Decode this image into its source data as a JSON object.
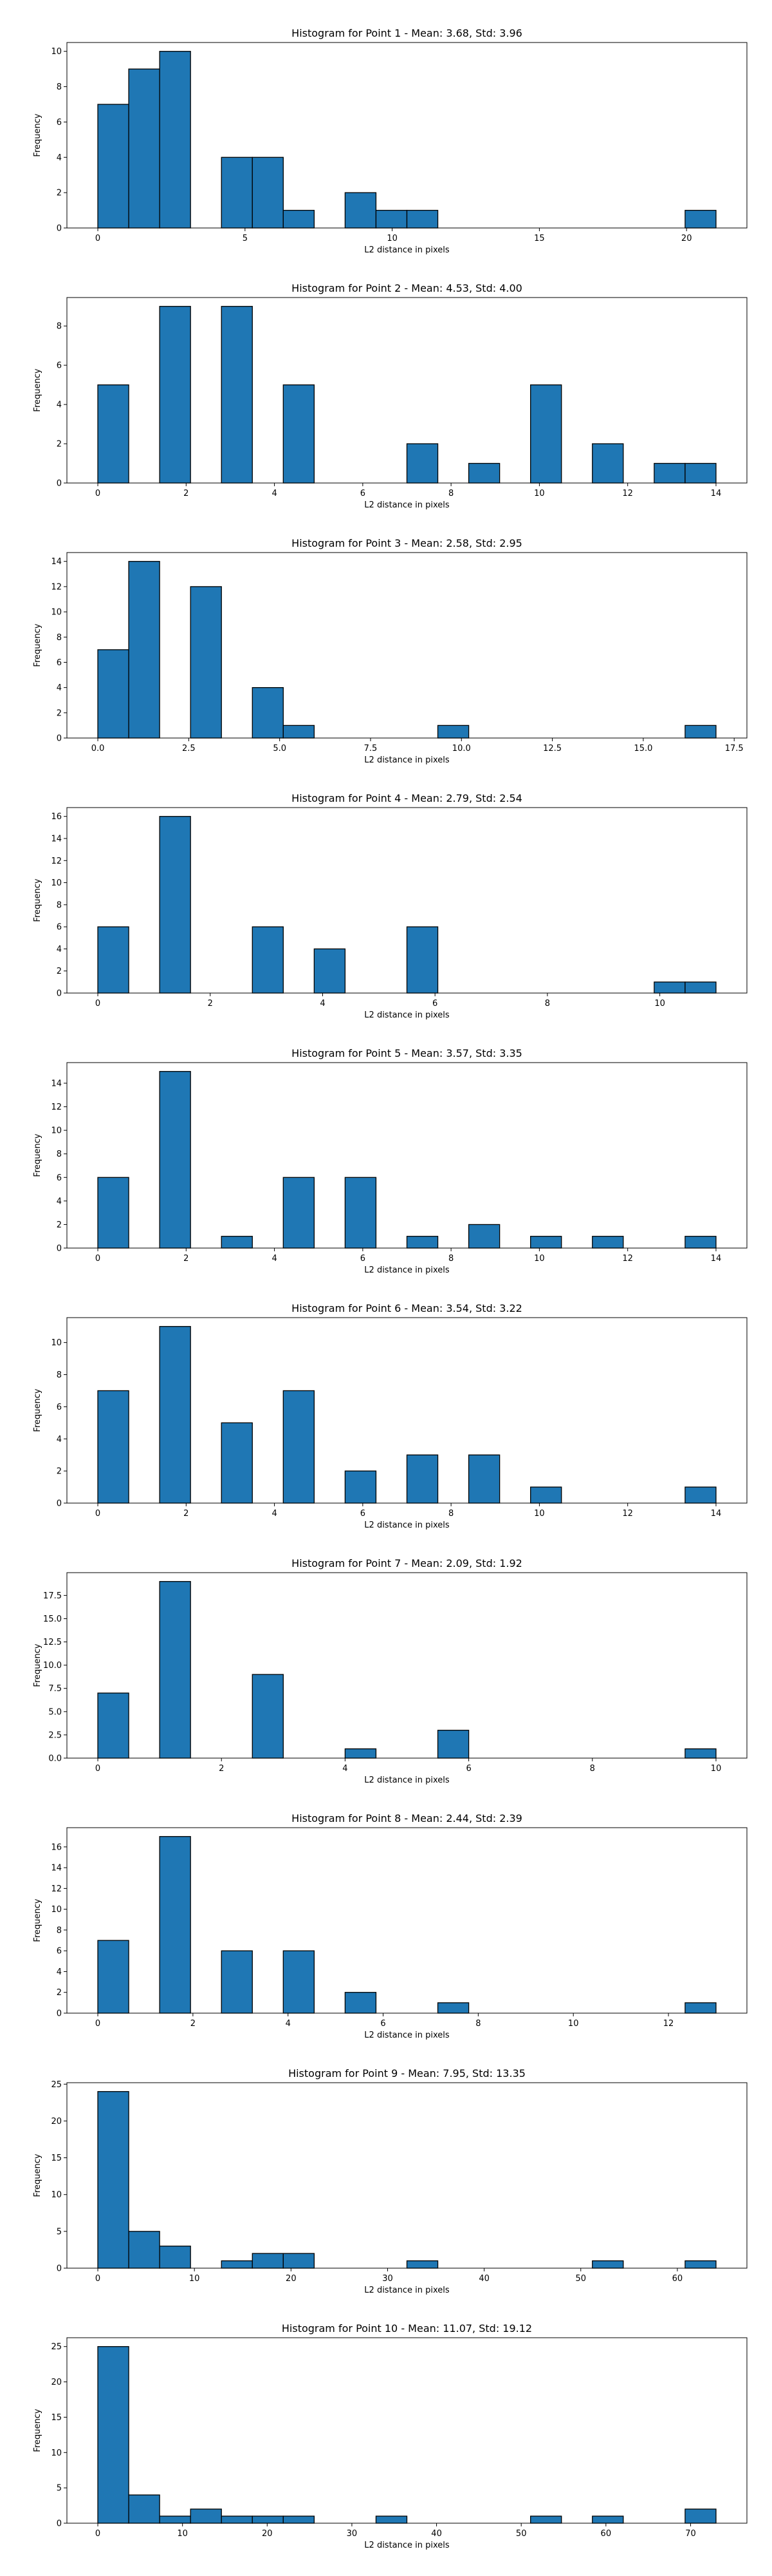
{
  "chart_data": [
    {
      "type": "bar",
      "title": "Histogram for Point 1 - Mean: 3.68, Std: 3.96",
      "xlabel": "L2 distance in pixels",
      "ylabel": "Frequency",
      "xlim": [
        -1.05,
        22.05
      ],
      "ylim": [
        0,
        10.5
      ],
      "xticks": [
        0,
        5,
        10,
        15,
        20
      ],
      "xticklabels": [
        "0",
        "5",
        "10",
        "15",
        "20"
      ],
      "yticks": [
        0,
        2,
        4,
        6,
        8,
        10
      ],
      "yticklabels": [
        "0",
        "2",
        "4",
        "6",
        "8",
        "10"
      ],
      "bin_edges": [
        0,
        1.05,
        2.1,
        3.15,
        4.2,
        5.25,
        6.3,
        7.35,
        8.4,
        9.45,
        10.5,
        11.55,
        12.6,
        13.65,
        14.7,
        15.75,
        16.8,
        17.85,
        18.9,
        19.95,
        21.0
      ],
      "values": [
        7,
        9,
        10,
        0,
        4,
        4,
        1,
        0,
        2,
        1,
        1,
        0,
        0,
        0,
        0,
        0,
        0,
        0,
        0,
        1
      ],
      "grid": false,
      "color": "#1f77b4",
      "edgecolor": "#000000"
    },
    {
      "type": "bar",
      "title": "Histogram for Point 2 - Mean: 4.53, Std: 4.00",
      "xlabel": "L2 distance in pixels",
      "ylabel": "Frequency",
      "xlim": [
        -0.7,
        14.7
      ],
      "ylim": [
        0,
        9.45
      ],
      "xticks": [
        0,
        2,
        4,
        6,
        8,
        10,
        12,
        14
      ],
      "xticklabels": [
        "0",
        "2",
        "4",
        "6",
        "8",
        "10",
        "12",
        "14"
      ],
      "yticks": [
        0,
        2,
        4,
        6,
        8
      ],
      "yticklabels": [
        "0",
        "2",
        "4",
        "6",
        "8"
      ],
      "bin_edges": [
        0,
        0.7,
        1.4,
        2.1,
        2.8,
        3.5,
        4.2,
        4.9,
        5.6,
        6.3,
        7.0,
        7.7,
        8.4,
        9.1,
        9.8,
        10.5,
        11.2,
        11.9,
        12.6,
        13.3,
        14.0
      ],
      "values": [
        5,
        0,
        9,
        0,
        9,
        0,
        5,
        0,
        0,
        0,
        2,
        0,
        1,
        0,
        5,
        0,
        2,
        0,
        1,
        1
      ],
      "grid": false,
      "color": "#1f77b4",
      "edgecolor": "#000000"
    },
    {
      "type": "bar",
      "title": "Histogram for Point 3 - Mean: 2.58, Std: 2.95",
      "xlabel": "L2 distance in pixels",
      "ylabel": "Frequency",
      "xlim": [
        -0.85,
        17.85
      ],
      "ylim": [
        0,
        14.7
      ],
      "xticks": [
        0,
        2.5,
        5,
        7.5,
        10,
        12.5,
        15,
        17.5
      ],
      "xticklabels": [
        "0.0",
        "2.5",
        "5.0",
        "7.5",
        "10.0",
        "12.5",
        "15.0",
        "17.5"
      ],
      "yticks": [
        0,
        2,
        4,
        6,
        8,
        10,
        12,
        14
      ],
      "yticklabels": [
        "0",
        "2",
        "4",
        "6",
        "8",
        "10",
        "12",
        "14"
      ],
      "bin_edges": [
        0,
        0.85,
        1.7,
        2.55,
        3.4,
        4.25,
        5.1,
        5.95,
        6.8,
        7.65,
        8.5,
        9.35,
        10.2,
        11.05,
        11.9,
        12.75,
        13.6,
        14.45,
        15.3,
        16.15,
        17.0
      ],
      "values": [
        7,
        14,
        0,
        12,
        0,
        4,
        1,
        0,
        0,
        0,
        0,
        1,
        0,
        0,
        0,
        0,
        0,
        0,
        0,
        1
      ],
      "grid": false,
      "color": "#1f77b4",
      "edgecolor": "#000000"
    },
    {
      "type": "bar",
      "title": "Histogram for Point 4 - Mean: 2.79, Std: 2.54",
      "xlabel": "L2 distance in pixels",
      "ylabel": "Frequency",
      "xlim": [
        -0.55,
        11.55
      ],
      "ylim": [
        0,
        16.8
      ],
      "xticks": [
        0,
        2,
        4,
        6,
        8,
        10
      ],
      "xticklabels": [
        "0",
        "2",
        "4",
        "6",
        "8",
        "10"
      ],
      "yticks": [
        0,
        2,
        4,
        6,
        8,
        10,
        12,
        14,
        16
      ],
      "yticklabels": [
        "0",
        "2",
        "4",
        "6",
        "8",
        "10",
        "12",
        "14",
        "16"
      ],
      "bin_edges": [
        0,
        0.55,
        1.1,
        1.65,
        2.2,
        2.75,
        3.3,
        3.85,
        4.4,
        4.95,
        5.5,
        6.05,
        6.6,
        7.15,
        7.7,
        8.25,
        8.8,
        9.35,
        9.9,
        10.45,
        11.0
      ],
      "values": [
        6,
        0,
        16,
        0,
        0,
        6,
        0,
        4,
        0,
        0,
        6,
        0,
        0,
        0,
        0,
        0,
        0,
        0,
        1,
        1
      ],
      "grid": false,
      "color": "#1f77b4",
      "edgecolor": "#000000"
    },
    {
      "type": "bar",
      "title": "Histogram for Point 5 - Mean: 3.57, Std: 3.35",
      "xlabel": "L2 distance in pixels",
      "ylabel": "Frequency",
      "xlim": [
        -0.7,
        14.7
      ],
      "ylim": [
        0,
        15.75
      ],
      "xticks": [
        0,
        2,
        4,
        6,
        8,
        10,
        12,
        14
      ],
      "xticklabels": [
        "0",
        "2",
        "4",
        "6",
        "8",
        "10",
        "12",
        "14"
      ],
      "yticks": [
        0,
        2,
        4,
        6,
        8,
        10,
        12,
        14
      ],
      "yticklabels": [
        "0",
        "2",
        "4",
        "6",
        "8",
        "10",
        "12",
        "14"
      ],
      "bin_edges": [
        0,
        0.7,
        1.4,
        2.1,
        2.8,
        3.5,
        4.2,
        4.9,
        5.6,
        6.3,
        7.0,
        7.7,
        8.4,
        9.1,
        9.8,
        10.5,
        11.2,
        11.9,
        12.6,
        13.3,
        14.0
      ],
      "values": [
        6,
        0,
        15,
        0,
        1,
        0,
        6,
        0,
        6,
        0,
        1,
        0,
        2,
        0,
        1,
        0,
        1,
        0,
        0,
        1
      ],
      "grid": false,
      "color": "#1f77b4",
      "edgecolor": "#000000"
    },
    {
      "type": "bar",
      "title": "Histogram for Point 6 - Mean: 3.54, Std: 3.22",
      "xlabel": "L2 distance in pixels",
      "ylabel": "Frequency",
      "xlim": [
        -0.7,
        14.7
      ],
      "ylim": [
        0,
        11.55
      ],
      "xticks": [
        0,
        2,
        4,
        6,
        8,
        10,
        12,
        14
      ],
      "xticklabels": [
        "0",
        "2",
        "4",
        "6",
        "8",
        "10",
        "12",
        "14"
      ],
      "yticks": [
        0,
        2,
        4,
        6,
        8,
        10
      ],
      "yticklabels": [
        "0",
        "2",
        "4",
        "6",
        "8",
        "10"
      ],
      "bin_edges": [
        0,
        0.7,
        1.4,
        2.1,
        2.8,
        3.5,
        4.2,
        4.9,
        5.6,
        6.3,
        7.0,
        7.7,
        8.4,
        9.1,
        9.8,
        10.5,
        11.2,
        11.9,
        12.6,
        13.3,
        14.0
      ],
      "values": [
        7,
        0,
        11,
        0,
        5,
        0,
        7,
        0,
        2,
        0,
        3,
        0,
        3,
        0,
        1,
        0,
        0,
        0,
        0,
        1
      ],
      "grid": false,
      "color": "#1f77b4",
      "edgecolor": "#000000"
    },
    {
      "type": "bar",
      "title": "Histogram for Point 7 - Mean: 2.09, Std: 1.92",
      "xlabel": "L2 distance in pixels",
      "ylabel": "Frequency",
      "xlim": [
        -0.5,
        10.5
      ],
      "ylim": [
        0,
        19.95
      ],
      "xticks": [
        0,
        2,
        4,
        6,
        8,
        10
      ],
      "xticklabels": [
        "0",
        "2",
        "4",
        "6",
        "8",
        "10"
      ],
      "yticks": [
        0,
        2.5,
        5,
        7.5,
        10,
        12.5,
        15,
        17.5
      ],
      "yticklabels": [
        "0.0",
        "2.5",
        "5.0",
        "7.5",
        "10.0",
        "12.5",
        "15.0",
        "17.5"
      ],
      "bin_edges": [
        0,
        0.5,
        1.0,
        1.5,
        2.0,
        2.5,
        3.0,
        3.5,
        4.0,
        4.5,
        5.0,
        5.5,
        6.0,
        6.5,
        7.0,
        7.5,
        8.0,
        8.5,
        9.0,
        9.5,
        10.0
      ],
      "values": [
        7,
        0,
        19,
        0,
        0,
        9,
        0,
        0,
        1,
        0,
        0,
        3,
        0,
        0,
        0,
        0,
        0,
        0,
        0,
        1
      ],
      "grid": false,
      "color": "#1f77b4",
      "edgecolor": "#000000"
    },
    {
      "type": "bar",
      "title": "Histogram for Point 8 - Mean: 2.44, Std: 2.39",
      "xlabel": "L2 distance in pixels",
      "ylabel": "Frequency",
      "xlim": [
        -0.65,
        13.65
      ],
      "ylim": [
        0,
        17.85
      ],
      "xticks": [
        0,
        2,
        4,
        6,
        8,
        10,
        12
      ],
      "xticklabels": [
        "0",
        "2",
        "4",
        "6",
        "8",
        "10",
        "12"
      ],
      "yticks": [
        0,
        2,
        4,
        6,
        8,
        10,
        12,
        14,
        16
      ],
      "yticklabels": [
        "0",
        "2",
        "4",
        "6",
        "8",
        "10",
        "12",
        "14",
        "16"
      ],
      "bin_edges": [
        0,
        0.65,
        1.3,
        1.95,
        2.6,
        3.25,
        3.9,
        4.55,
        5.2,
        5.85,
        6.5,
        7.15,
        7.8,
        8.45,
        9.1,
        9.75,
        10.4,
        11.05,
        11.7,
        12.35,
        13.0
      ],
      "values": [
        7,
        0,
        17,
        0,
        6,
        0,
        6,
        0,
        2,
        0,
        0,
        1,
        0,
        0,
        0,
        0,
        0,
        0,
        0,
        1
      ],
      "grid": false,
      "color": "#1f77b4",
      "edgecolor": "#000000"
    },
    {
      "type": "bar",
      "title": "Histogram for Point 9 - Mean: 7.95, Std: 13.35",
      "xlabel": "L2 distance in pixels",
      "ylabel": "Frequency",
      "xlim": [
        -3.2,
        67.2
      ],
      "ylim": [
        0,
        25.2
      ],
      "xticks": [
        0,
        10,
        20,
        30,
        40,
        50,
        60
      ],
      "xticklabels": [
        "0",
        "10",
        "20",
        "30",
        "40",
        "50",
        "60"
      ],
      "yticks": [
        0,
        5,
        10,
        15,
        20,
        25
      ],
      "yticklabels": [
        "0",
        "5",
        "10",
        "15",
        "20",
        "25"
      ],
      "bin_edges": [
        0,
        3.2,
        6.4,
        9.6,
        12.8,
        16.0,
        19.2,
        22.4,
        25.6,
        28.8,
        32.0,
        35.2,
        38.4,
        41.6,
        44.8,
        48.0,
        51.2,
        54.4,
        57.6,
        60.8,
        64.0
      ],
      "values": [
        24,
        5,
        3,
        0,
        1,
        2,
        2,
        0,
        0,
        0,
        1,
        0,
        0,
        0,
        0,
        0,
        1,
        0,
        0,
        1
      ],
      "grid": false,
      "color": "#1f77b4",
      "edgecolor": "#000000"
    },
    {
      "type": "bar",
      "title": "Histogram for Point 10 - Mean: 11.07, Std: 19.12",
      "xlabel": "L2 distance in pixels",
      "ylabel": "Frequency",
      "xlim": [
        -3.65,
        76.65
      ],
      "ylim": [
        0,
        26.25
      ],
      "xticks": [
        0,
        10,
        20,
        30,
        40,
        50,
        60,
        70
      ],
      "xticklabels": [
        "0",
        "10",
        "20",
        "30",
        "40",
        "50",
        "60",
        "70"
      ],
      "yticks": [
        0,
        5,
        10,
        15,
        20,
        25
      ],
      "yticklabels": [
        "0",
        "5",
        "10",
        "15",
        "20",
        "25"
      ],
      "bin_edges": [
        0,
        3.65,
        7.3,
        10.95,
        14.6,
        18.25,
        21.9,
        25.55,
        29.2,
        32.85,
        36.5,
        40.15,
        43.8,
        47.45,
        51.1,
        54.75,
        58.4,
        62.05,
        65.7,
        69.35,
        73.0
      ],
      "values": [
        25,
        4,
        1,
        2,
        1,
        1,
        1,
        0,
        0,
        1,
        0,
        0,
        0,
        0,
        1,
        0,
        1,
        0,
        0,
        2
      ],
      "grid": false,
      "color": "#1f77b4",
      "edgecolor": "#000000"
    }
  ]
}
